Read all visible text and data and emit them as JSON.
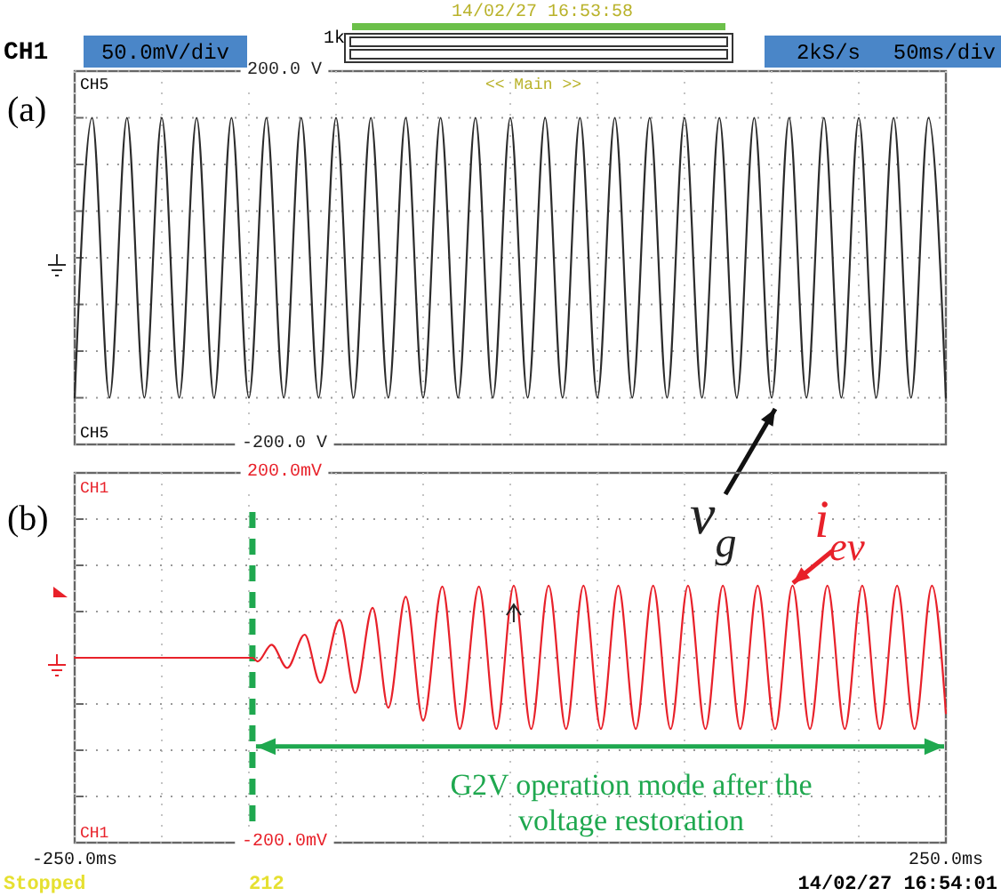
{
  "chart_data": [
    {
      "type": "line",
      "grid": true,
      "marker": "none",
      "line_style": "solid",
      "tick_labels": "y",
      "annotations": [
        "CH1",
        "50.0mV/div",
        "1k",
        "14/02/27 16:53:58",
        "2kS/s",
        "50ms/div",
        "(a)",
        "CH5",
        "<< Main >>",
        "CH5"
      ],
      "xlim": [
        -250,
        250
      ],
      "xticks": [
        {
          "value": -250,
          "label": null
        },
        {
          "value": -200,
          "label": null
        },
        {
          "value": -150,
          "label": null
        },
        {
          "value": -100,
          "label": null
        },
        {
          "value": -50,
          "label": null
        },
        {
          "value": 0,
          "label": null
        },
        {
          "value": 50,
          "label": null
        },
        {
          "value": 100,
          "label": null
        },
        {
          "value": 150,
          "label": null
        },
        {
          "value": 200,
          "label": null
        },
        {
          "value": 250,
          "label": null
        }
      ],
      "ylim": [
        -200,
        200
      ],
      "yticks": [
        {
          "value": -200,
          "label": "-200.0 V"
        },
        {
          "value": -150,
          "label": null
        },
        {
          "value": -100,
          "label": null
        },
        {
          "value": -50,
          "label": null
        },
        {
          "value": 0,
          "label": null
        },
        {
          "value": 50,
          "label": null
        },
        {
          "value": 100,
          "label": null
        },
        {
          "value": 150,
          "label": null
        },
        {
          "value": 200,
          "label": "200.0 V"
        }
      ],
      "series": [
        {
          "name": "v$_{g}$",
          "color": "#2b2b2b",
          "x": [
            -250,
            -240,
            -230,
            -220,
            -210,
            -200,
            -190,
            -180,
            -170,
            -160,
            -150,
            -140,
            -130,
            -120,
            -110,
            -100,
            -90,
            -80,
            -70,
            -60,
            -50,
            -40,
            -30,
            -20,
            -10,
            0,
            10,
            20,
            30,
            40,
            50,
            60,
            70,
            80,
            90,
            100,
            110,
            120,
            130,
            140,
            150,
            160,
            170,
            180,
            190,
            200,
            210,
            220,
            230,
            240,
            250
          ],
          "values": [
            -150,
            150,
            -150,
            150,
            -150,
            150,
            -150,
            150,
            -150,
            150,
            -150,
            150,
            -150,
            150,
            -150,
            150,
            -150,
            150,
            -150,
            150,
            -150,
            150,
            -150,
            150,
            -150,
            150,
            -150,
            150,
            -150,
            150,
            -150,
            150,
            -150,
            150,
            -150,
            150,
            -150,
            150,
            -150,
            150,
            -150,
            150,
            -150,
            150,
            -150,
            150,
            -150,
            150,
            -150,
            150,
            -150
          ]
        }
      ]
    },
    {
      "type": "line",
      "grid": true,
      "marker": "none",
      "line_style": "solid",
      "annotations": [
        "(b)",
        "CH1",
        "CH1",
        "G2V operation mode after the voltage restoration",
        "Stopped",
        "212",
        "14/02/27 16:54:01"
      ],
      "xlim": [
        -250,
        250
      ],
      "xticks": [
        {
          "value": -250,
          "label": "-250.0ms"
        },
        {
          "value": -200,
          "label": null
        },
        {
          "value": -150,
          "label": null
        },
        {
          "value": -100,
          "label": null
        },
        {
          "value": -50,
          "label": null
        },
        {
          "value": 0,
          "label": null
        },
        {
          "value": 50,
          "label": null
        },
        {
          "value": 100,
          "label": null
        },
        {
          "value": 150,
          "label": null
        },
        {
          "value": 200,
          "label": null
        },
        {
          "value": 250,
          "label": "250.0ms"
        }
      ],
      "ylim": [
        -200,
        200
      ],
      "yticks": [
        {
          "value": -200,
          "label": "-200.0mV"
        },
        {
          "value": -150,
          "label": null
        },
        {
          "value": -100,
          "label": null
        },
        {
          "value": -50,
          "label": null
        },
        {
          "value": 0,
          "label": null
        },
        {
          "value": 50,
          "label": null
        },
        {
          "value": 100,
          "label": null
        },
        {
          "value": 150,
          "label": null
        },
        {
          "value": 200,
          "label": "200.0mV"
        }
      ],
      "ref_lines": [
        {
          "axis": "x",
          "value": -148,
          "color": "#1fa84f",
          "line_style": "dashed"
        }
      ],
      "series": [
        {
          "name": "i$_{ev}$",
          "color": "#e8212a",
          "x": [
            -250,
            -148,
            -145,
            -137,
            -128,
            -118,
            -109,
            -98,
            -89,
            -79,
            -70,
            -60,
            -50,
            -39,
            -29,
            -18,
            -8,
            2,
            12,
            22,
            32,
            42,
            52,
            62,
            72,
            82,
            92,
            102,
            112,
            122,
            132,
            142,
            152,
            162,
            172,
            182,
            192,
            202,
            212,
            222,
            232,
            242,
            250
          ],
          "values": [
            0,
            0,
            -4,
            14,
            -11,
            25,
            -27,
            41,
            -38,
            54,
            -54,
            66,
            -68,
            77,
            -77,
            77,
            -77,
            78,
            -77,
            78,
            -77,
            78,
            -77,
            78,
            -77,
            78,
            -77,
            78,
            -77,
            78,
            -77,
            78,
            -77,
            78,
            -77,
            78,
            -77,
            78,
            -77,
            78,
            -77,
            78,
            -60
          ]
        }
      ]
    }
  ]
}
